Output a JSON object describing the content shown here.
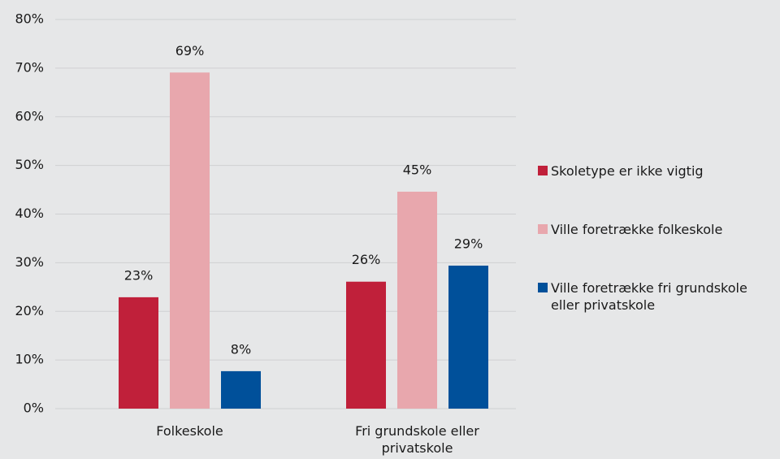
{
  "chart_data": {
    "type": "bar",
    "categories": [
      "Folkeskole",
      "Fri grundskole eller privatskole"
    ],
    "series": [
      {
        "name": "Skoletype er ikke vigtig",
        "color": "#c0203a",
        "values": [
          22.9,
          26.1
        ],
        "value_labels": [
          "23%",
          "26%"
        ]
      },
      {
        "name": "Ville foretrække folkeskole",
        "color": "#e8a7ad",
        "values": [
          69.1,
          44.6
        ],
        "value_labels": [
          "69%",
          "45%"
        ]
      },
      {
        "name": "Ville foretrække fri grundskole eller privatskole",
        "color": "#00509a",
        "values": [
          7.7,
          29.4
        ],
        "value_labels": [
          "8%",
          "29%"
        ]
      }
    ],
    "ylim": [
      0,
      80
    ],
    "yticks": [
      {
        "value": 0,
        "label": "0%"
      },
      {
        "value": 10,
        "label": "10%"
      },
      {
        "value": 20,
        "label": "20%"
      },
      {
        "value": 30,
        "label": "30%"
      },
      {
        "value": 40,
        "label": "40%"
      },
      {
        "value": 50,
        "label": "50%"
      },
      {
        "value": 60,
        "label": "60%"
      },
      {
        "value": 70,
        "label": "70%"
      },
      {
        "value": 80,
        "label": "80%"
      }
    ],
    "grid": true,
    "legend": "right"
  }
}
